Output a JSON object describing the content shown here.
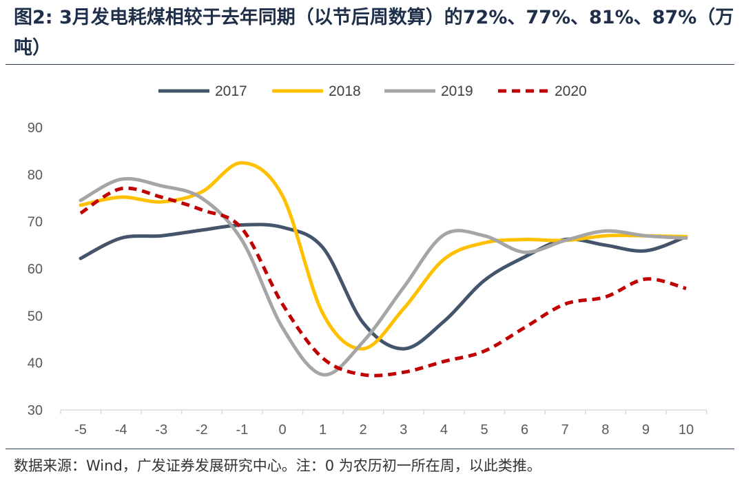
{
  "title": "图2: 3月发电耗煤相较于去年同期（以节后周数算）的72%、77%、81%、87%（万吨）",
  "source": "数据来源：Wind，广发证券发展研究中心。注：0 为农历初一所在周，以此类推。",
  "chart_data": {
    "type": "line",
    "x": [
      -5,
      -4,
      -3,
      -2,
      -1,
      0,
      1,
      2,
      3,
      4,
      5,
      6,
      7,
      8,
      9,
      10
    ],
    "ylim": [
      30,
      90
    ],
    "yticks": [
      30,
      40,
      50,
      60,
      70,
      80,
      90
    ],
    "xlabel": "",
    "ylabel": "",
    "grid": false,
    "legend_position": "top",
    "series": [
      {
        "name": "2017",
        "color": "#44546a",
        "dash": "solid",
        "values": [
          62.2,
          66.5,
          67.0,
          68.2,
          69.3,
          68.8,
          64.5,
          48.5,
          43.0,
          48.8,
          57.5,
          62.5,
          66.2,
          65.0,
          63.8,
          66.8
        ]
      },
      {
        "name": "2018",
        "color": "#ffc000",
        "dash": "solid",
        "values": [
          73.5,
          75.2,
          74.2,
          76.3,
          82.5,
          75.5,
          50.5,
          43.0,
          51.5,
          62.0,
          65.5,
          66.2,
          66.0,
          67.0,
          67.0,
          66.8
        ]
      },
      {
        "name": "2019",
        "color": "#a5a5a5",
        "dash": "solid",
        "values": [
          74.5,
          79.0,
          77.6,
          75.0,
          66.0,
          47.5,
          37.5,
          44.5,
          56.0,
          67.2,
          67.0,
          63.5,
          66.0,
          68.0,
          67.0,
          66.5
        ]
      },
      {
        "name": "2020",
        "color": "#c00000",
        "dash": "dashed",
        "values": [
          71.8,
          77.0,
          75.2,
          72.5,
          68.5,
          52.5,
          41.0,
          37.5,
          38.0,
          40.3,
          42.5,
          47.5,
          52.5,
          54.0,
          57.8,
          55.8
        ]
      }
    ]
  }
}
